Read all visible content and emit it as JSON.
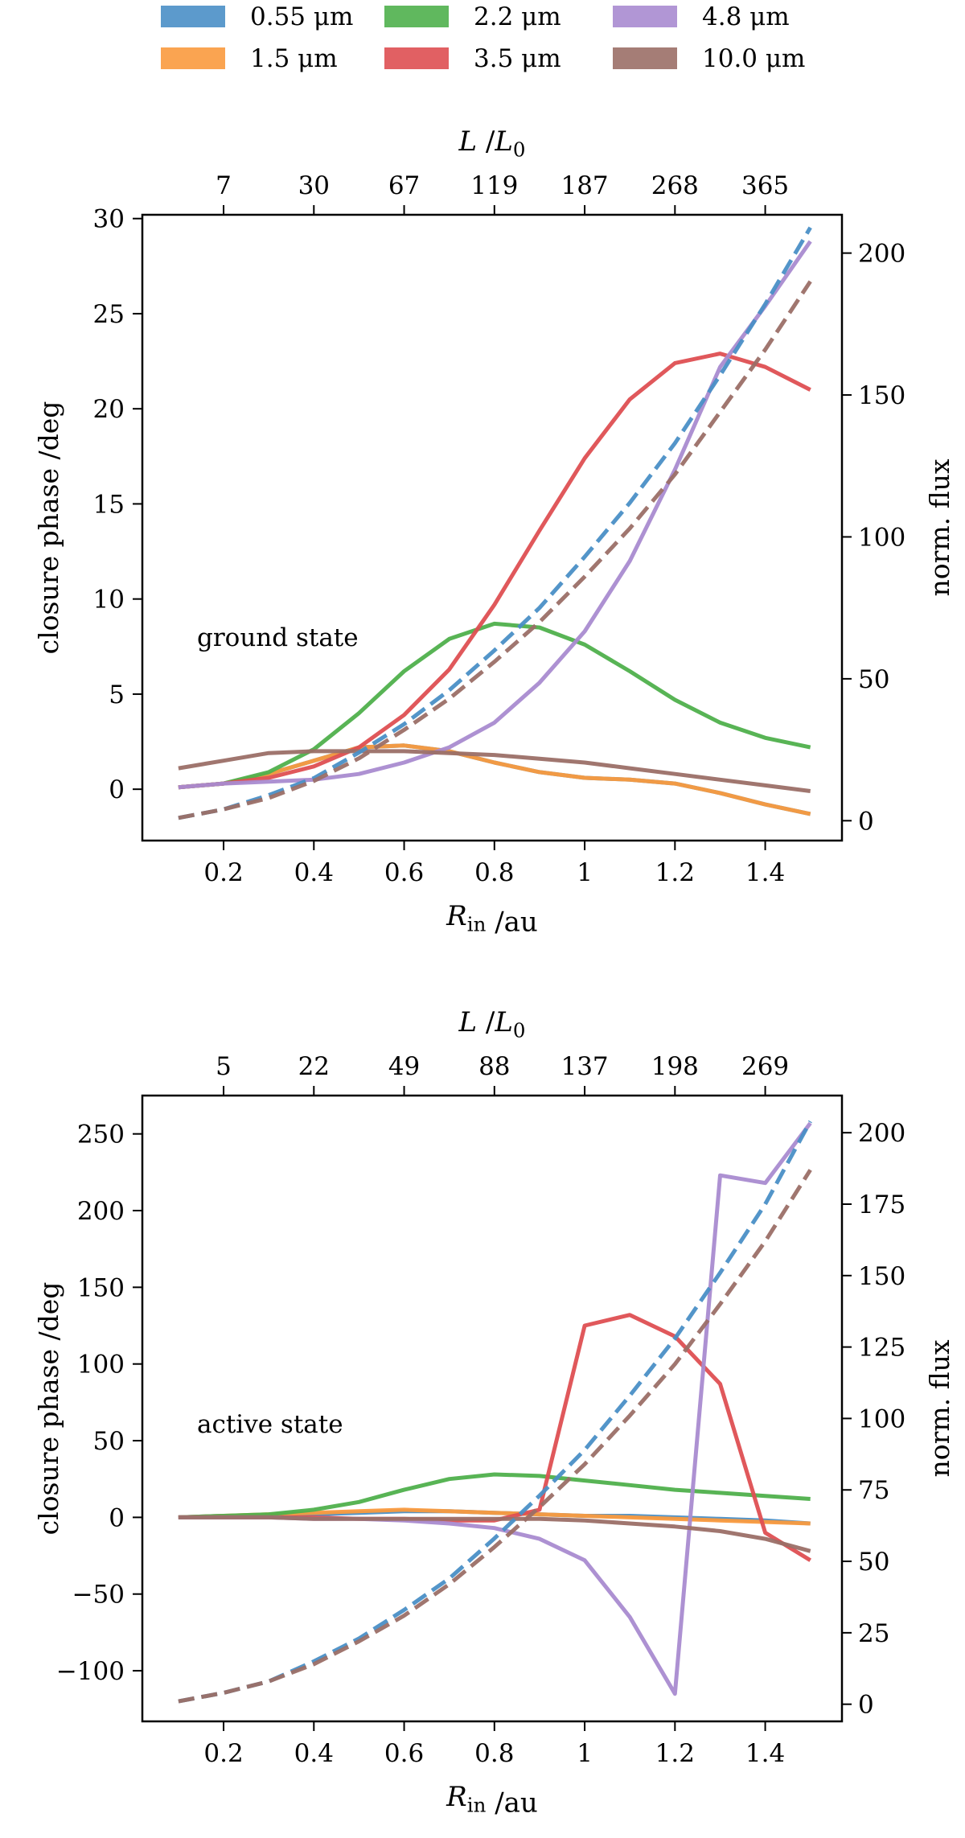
{
  "legend": {
    "position": "top",
    "entries": [
      {
        "label": "0.55 μm",
        "color": "#4a8fc6"
      },
      {
        "label": "1.5 μm",
        "color": "#fa9a3e"
      },
      {
        "label": "2.2 μm",
        "color": "#4fb04c"
      },
      {
        "label": "3.5 μm",
        "color": "#de4f52"
      },
      {
        "label": "4.8 μm",
        "color": "#a98bd0"
      },
      {
        "label": "10.0 μm",
        "color": "#9b6f67"
      }
    ]
  },
  "chart_data": [
    {
      "type": "line",
      "annotation": "ground state",
      "xlabel": "R_in /au",
      "ylabel": "closure phase /deg",
      "y2label": "norm. flux",
      "top_axis_label": "L /L_0",
      "xlim": [
        0.02,
        1.57
      ],
      "ylim": [
        -2.7,
        30.2
      ],
      "y2lim": [
        -7,
        213.5
      ],
      "xticks": [
        0.2,
        0.4,
        0.6,
        0.8,
        1.0,
        1.2,
        1.4
      ],
      "yticks": [
        0,
        5,
        10,
        15,
        20,
        25,
        30
      ],
      "y2ticks": [
        0,
        50,
        100,
        150,
        200
      ],
      "top_ticks": [
        {
          "x": 0.2,
          "label": "7"
        },
        {
          "x": 0.4,
          "label": "30"
        },
        {
          "x": 0.6,
          "label": "67"
        },
        {
          "x": 0.8,
          "label": "119"
        },
        {
          "x": 1.0,
          "label": "187"
        },
        {
          "x": 1.2,
          "label": "268"
        },
        {
          "x": 1.4,
          "label": "365"
        }
      ],
      "x": [
        0.1,
        0.2,
        0.3,
        0.4,
        0.5,
        0.6,
        0.7,
        0.8,
        0.9,
        1.0,
        1.1,
        1.2,
        1.3,
        1.4,
        1.5
      ],
      "series": [
        {
          "name": "0.55 μm",
          "axis": "left",
          "values": [
            0.1,
            0.3,
            0.8,
            1.5,
            2.2,
            2.3,
            2.0,
            1.4,
            0.9,
            0.6,
            0.5,
            0.3,
            -0.2,
            -0.8,
            -1.3
          ]
        },
        {
          "name": "1.5 μm",
          "axis": "left",
          "values": [
            0.1,
            0.3,
            0.8,
            1.5,
            2.2,
            2.3,
            2.0,
            1.4,
            0.9,
            0.6,
            0.5,
            0.3,
            -0.2,
            -0.8,
            -1.3
          ]
        },
        {
          "name": "2.2 μm",
          "axis": "left",
          "values": [
            0.1,
            0.3,
            0.9,
            2.1,
            4.0,
            6.2,
            7.9,
            8.7,
            8.5,
            7.6,
            6.2,
            4.7,
            3.5,
            2.7,
            2.2
          ]
        },
        {
          "name": "3.5 μm",
          "axis": "left",
          "values": [
            0.1,
            0.3,
            0.6,
            1.2,
            2.2,
            3.9,
            6.3,
            9.7,
            13.6,
            17.4,
            20.5,
            22.4,
            22.9,
            22.2,
            21.0
          ]
        },
        {
          "name": "4.8 μm",
          "axis": "left",
          "values": [
            0.1,
            0.3,
            0.4,
            0.5,
            0.8,
            1.4,
            2.2,
            3.5,
            5.6,
            8.3,
            12.0,
            16.8,
            22.2,
            25.4,
            28.8
          ]
        },
        {
          "name": "10.0 μm",
          "axis": "left",
          "values": [
            1.1,
            1.5,
            1.9,
            2.0,
            2.0,
            2.0,
            1.9,
            1.8,
            1.6,
            1.4,
            1.1,
            0.8,
            0.5,
            0.2,
            -0.1
          ]
        },
        {
          "name": "0.55 μm flux",
          "axis": "right",
          "dashed": true,
          "values": [
            1,
            4,
            9,
            15,
            24,
            34,
            46,
            60,
            75,
            93,
            112,
            133,
            157,
            182,
            209
          ]
        },
        {
          "name": "10.0 μm flux",
          "axis": "right",
          "dashed": true,
          "values": [
            1,
            4,
            8,
            14,
            22,
            32,
            43,
            56,
            70,
            86,
            103,
            122,
            144,
            166,
            190
          ]
        }
      ]
    },
    {
      "type": "line",
      "annotation": "active state",
      "xlabel": "R_in /au",
      "ylabel": "closure phase /deg",
      "y2label": "norm. flux",
      "top_axis_label": "L /L_0",
      "xlim": [
        0.02,
        1.57
      ],
      "ylim": [
        -133,
        275
      ],
      "y2lim": [
        -6,
        213
      ],
      "xticks": [
        0.2,
        0.4,
        0.6,
        0.8,
        1.0,
        1.2,
        1.4
      ],
      "yticks": [
        -100,
        -50,
        0,
        50,
        100,
        150,
        200,
        250
      ],
      "y2ticks": [
        0,
        25,
        50,
        75,
        100,
        125,
        150,
        175,
        200
      ],
      "top_ticks": [
        {
          "x": 0.2,
          "label": "5"
        },
        {
          "x": 0.4,
          "label": "22"
        },
        {
          "x": 0.6,
          "label": "49"
        },
        {
          "x": 0.8,
          "label": "88"
        },
        {
          "x": 1.0,
          "label": "137"
        },
        {
          "x": 1.2,
          "label": "198"
        },
        {
          "x": 1.4,
          "label": "269"
        }
      ],
      "x": [
        0.1,
        0.2,
        0.3,
        0.4,
        0.5,
        0.6,
        0.7,
        0.8,
        0.9,
        1.0,
        1.1,
        1.2,
        1.3,
        1.4,
        1.5
      ],
      "series": [
        {
          "name": "0.55 μm",
          "axis": "left",
          "values": [
            0,
            1,
            1,
            2,
            3,
            4,
            4,
            3,
            2,
            1,
            1,
            0,
            -1,
            -2,
            -4
          ]
        },
        {
          "name": "1.5 μm",
          "axis": "left",
          "values": [
            0,
            1,
            2,
            3,
            4,
            5,
            4,
            3,
            2,
            1,
            0,
            -1,
            -2,
            -3,
            -4
          ]
        },
        {
          "name": "2.2 μm",
          "axis": "left",
          "values": [
            0,
            1,
            2,
            5,
            10,
            18,
            25,
            28,
            27,
            24,
            21,
            18,
            16,
            14,
            12
          ]
        },
        {
          "name": "3.5 μm",
          "axis": "left",
          "values": [
            0,
            0,
            0,
            0,
            -1,
            -1,
            -2,
            -2,
            5,
            125,
            132,
            118,
            87,
            -10,
            -28
          ]
        },
        {
          "name": "4.8 μm",
          "axis": "left",
          "values": [
            0,
            0,
            0,
            -1,
            -1,
            -2,
            -4,
            -7,
            -14,
            -28,
            -65,
            -115,
            223,
            218,
            257
          ]
        },
        {
          "name": "10.0 μm",
          "axis": "left",
          "values": [
            0,
            0,
            0,
            -1,
            -1,
            -1,
            -1,
            -1,
            -1,
            -2,
            -4,
            -6,
            -9,
            -14,
            -22
          ]
        },
        {
          "name": "0.55 μm flux",
          "axis": "right",
          "dashed": true,
          "values": [
            1,
            4,
            8,
            15,
            23,
            33,
            44,
            58,
            73,
            89,
            108,
            128,
            151,
            175,
            204
          ]
        },
        {
          "name": "10.0 μm flux",
          "axis": "right",
          "dashed": true,
          "values": [
            1,
            4,
            8,
            14,
            22,
            31,
            42,
            55,
            69,
            84,
            101,
            119,
            140,
            162,
            187
          ]
        }
      ]
    }
  ]
}
